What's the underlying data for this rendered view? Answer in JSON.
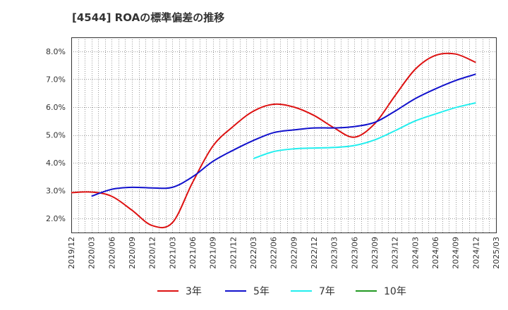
{
  "chart_data": {
    "type": "line",
    "title": "[4544]  ROAの標準偏差の推移",
    "xlabel": "",
    "ylabel": "",
    "x_ticks": [
      "2019/12",
      "2020/03",
      "2020/06",
      "2020/09",
      "2020/12",
      "2021/03",
      "2021/06",
      "2021/09",
      "2021/12",
      "2022/03",
      "2022/06",
      "2022/09",
      "2022/12",
      "2023/03",
      "2023/06",
      "2023/09",
      "2023/12",
      "2024/03",
      "2024/06",
      "2024/09",
      "2024/12",
      "2025/03"
    ],
    "y_ticks": [
      "2.0%",
      "3.0%",
      "4.0%",
      "5.0%",
      "6.0%",
      "7.0%",
      "8.0%"
    ],
    "ylim": [
      1.5,
      8.5
    ],
    "grid": true,
    "legend_position": "bottom",
    "series": [
      {
        "name": "3年",
        "color": "#dd1111",
        "x": [
          "2019/12",
          "2020/03",
          "2020/06",
          "2020/09",
          "2020/12",
          "2021/03",
          "2021/06",
          "2021/09",
          "2021/12",
          "2022/03",
          "2022/06",
          "2022/09",
          "2022/12",
          "2023/03",
          "2023/06",
          "2023/09",
          "2023/12",
          "2024/03",
          "2024/06",
          "2024/09",
          "2024/12"
        ],
        "values": [
          2.93,
          2.95,
          2.8,
          2.3,
          1.75,
          1.85,
          3.3,
          4.6,
          5.3,
          5.85,
          6.1,
          6.0,
          5.7,
          5.25,
          4.92,
          5.4,
          6.4,
          7.35,
          7.85,
          7.9,
          7.6
        ]
      },
      {
        "name": "5年",
        "color": "#1111cc",
        "x": [
          "2020/03",
          "2020/06",
          "2020/09",
          "2020/12",
          "2021/03",
          "2021/06",
          "2021/09",
          "2021/12",
          "2022/03",
          "2022/06",
          "2022/09",
          "2022/12",
          "2023/03",
          "2023/06",
          "2023/09",
          "2023/12",
          "2024/03",
          "2024/06",
          "2024/09",
          "2024/12"
        ],
        "values": [
          2.8,
          3.05,
          3.12,
          3.1,
          3.12,
          3.5,
          4.05,
          4.45,
          4.8,
          5.08,
          5.18,
          5.25,
          5.25,
          5.3,
          5.45,
          5.85,
          6.3,
          6.65,
          6.95,
          7.18
        ]
      },
      {
        "name": "7年",
        "color": "#22eeee",
        "x": [
          "2022/03",
          "2022/06",
          "2022/09",
          "2022/12",
          "2023/03",
          "2023/06",
          "2023/09",
          "2023/12",
          "2024/03",
          "2024/06",
          "2024/09",
          "2024/12"
        ],
        "values": [
          4.15,
          4.4,
          4.5,
          4.53,
          4.55,
          4.62,
          4.82,
          5.15,
          5.5,
          5.75,
          5.98,
          6.15
        ]
      },
      {
        "name": "10年",
        "color": "#229922",
        "x": [],
        "values": []
      }
    ]
  }
}
